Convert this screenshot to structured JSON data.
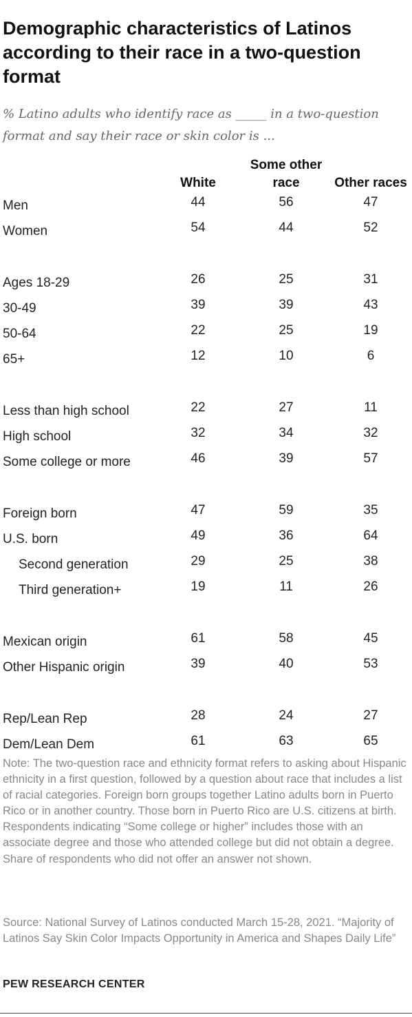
{
  "chart_data": {
    "type": "table",
    "title": "Demographic characteristics of Latinos according to their race in a two-question format",
    "subtitle": "% Latino adults who identify race as _____ in a two-question format and say their race or skin color is ...",
    "columns": [
      "White",
      "Some other race",
      "Other races"
    ],
    "rows": [
      {
        "label": "Men",
        "values": [
          "44",
          "56",
          "47"
        ]
      },
      {
        "label": "Women",
        "values": [
          "54",
          "44",
          "52"
        ]
      },
      {
        "label": "Ages 18-29",
        "values": [
          "26",
          "25",
          "31"
        ]
      },
      {
        "label": "30-49",
        "values": [
          "39",
          "39",
          "43"
        ]
      },
      {
        "label": "50-64",
        "values": [
          "22",
          "25",
          "19"
        ]
      },
      {
        "label": "65+",
        "values": [
          "12",
          "10",
          "6"
        ]
      },
      {
        "label": "Less than high school",
        "values": [
          "22",
          "27",
          "11"
        ]
      },
      {
        "label": "High school",
        "values": [
          "32",
          "34",
          "32"
        ]
      },
      {
        "label": "Some college or more",
        "values": [
          "46",
          "39",
          "57"
        ]
      },
      {
        "label": "Foreign born",
        "values": [
          "47",
          "59",
          "35"
        ]
      },
      {
        "label": "U.S. born",
        "values": [
          "49",
          "36",
          "64"
        ]
      },
      {
        "label": "Second generation",
        "values": [
          "29",
          "25",
          "38"
        ]
      },
      {
        "label": "Third generation+",
        "values": [
          "19",
          "11",
          "26"
        ]
      },
      {
        "label": "Mexican origin",
        "values": [
          "61",
          "58",
          "45"
        ]
      },
      {
        "label": "Other Hispanic origin",
        "values": [
          "39",
          "40",
          "53"
        ]
      },
      {
        "label": "Rep/Lean Rep",
        "values": [
          "28",
          "24",
          "27"
        ]
      },
      {
        "label": "Dem/Lean Dem",
        "values": [
          "61",
          "63",
          "65"
        ]
      }
    ]
  },
  "header": {
    "col_white": "White",
    "col_some_other_line1": "Some other",
    "col_some_other_line2": "race",
    "col_other_races": "Other races"
  },
  "note": "Note: The two-question race and ethnicity format refers to asking about Hispanic ethnicity in a first question, followed by a question about race that includes a list of racial categories. Foreign born groups together Latino adults born in Puerto Rico or in another country. Those born in Puerto Rico are U.S. citizens at birth. Respondents indicating “Some college or higher” includes those with an associate degree and those who attended college but did not obtain a degree. Share of respondents who did not offer an answer not shown.",
  "source": "Source: National Survey of Latinos conducted March 15-28, 2021. “Majority of Latinos Say Skin Color Impacts Opportunity in America and Shapes Daily Life”",
  "brand": "PEW RESEARCH CENTER",
  "colors": {
    "title": "#111111",
    "text": "#222222",
    "muted": "#888888",
    "subtitle": "#666666"
  }
}
